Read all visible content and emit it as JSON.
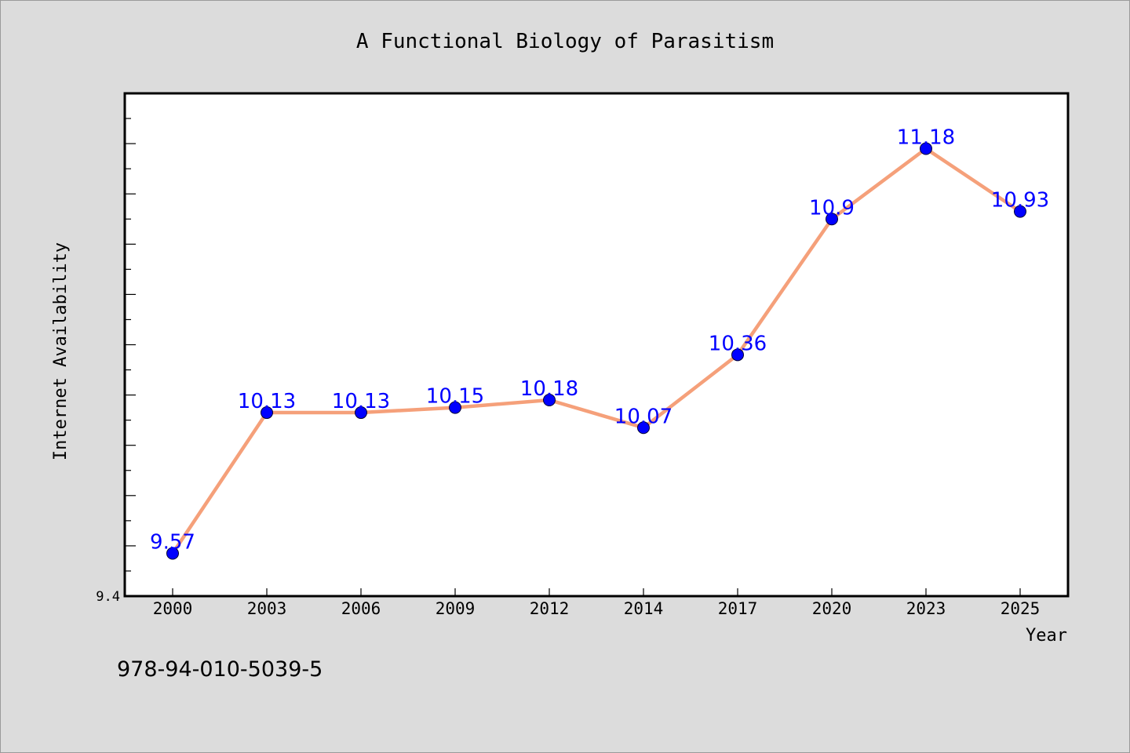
{
  "chart_data": {
    "type": "line",
    "title": "A Functional Biology of Parasitism",
    "xlabel": "Year",
    "ylabel": "Internet Availability",
    "categories": [
      "2000",
      "2003",
      "2006",
      "2009",
      "2012",
      "2014",
      "2017",
      "2020",
      "2023",
      "2025"
    ],
    "series": [
      {
        "values": [
          9.57,
          10.13,
          10.13,
          10.15,
          10.18,
          10.07,
          10.36,
          10.9,
          11.18,
          10.93
        ],
        "labels": [
          "9.57",
          "10.13",
          "10.13",
          "10.15",
          "10.18",
          "10.07",
          "10.36",
          "10.9",
          "11.18",
          "10.93"
        ],
        "line_color": "#f5a07a",
        "marker_color": "#0000ff"
      }
    ],
    "ylim": [
      9.4,
      11.4
    ],
    "ytick_labels": [
      "9.4"
    ],
    "grid": false,
    "legend": "none"
  },
  "footnote": "978-94-010-5039-5",
  "colors": {
    "background": "#dcdcdc",
    "plot_background": "#ffffff",
    "line": "#f5a07a",
    "marker": "#0000ff",
    "data_label": "#0000ff"
  }
}
